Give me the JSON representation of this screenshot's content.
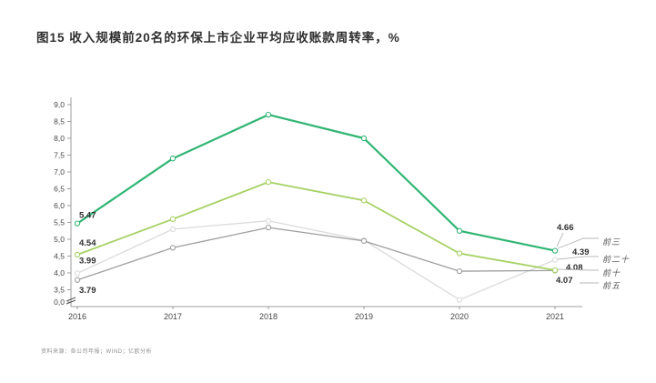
{
  "figure": {
    "title": "图15  收入规模前20名的环保上市企业平均应收账款周转率，%",
    "footnote": "资料来源：各公司年报；WIND；亿欧分析"
  },
  "chart_data": {
    "type": "line",
    "title": "收入规模前20名的环保上市企业平均应收账款周转率",
    "unit": "%",
    "x_categories": [
      "2016",
      "2017",
      "2018",
      "2019",
      "2020",
      "2021"
    ],
    "y_axis": {
      "tick_labels": [
        "9,0",
        "8,5",
        "8,0",
        "7,5",
        "7,0",
        "6,5",
        "6,0",
        "5,5",
        "5,0",
        "4,5",
        "4,0",
        "3,5",
        "0,0"
      ],
      "tick_values": [
        9.0,
        8.5,
        8.0,
        7.5,
        7.0,
        6.5,
        6.0,
        5.5,
        5.0,
        4.5,
        4.0,
        3.5,
        0.0
      ],
      "range_shown": [
        3.5,
        9.0
      ],
      "axis_break": true,
      "grid": false
    },
    "legend": {
      "position": "right",
      "entries": [
        "前三",
        "前二十",
        "前十",
        "前五"
      ]
    },
    "series": [
      {
        "name": "前二十",
        "color": "#dbdbdb",
        "values": [
          3.99,
          5.3,
          5.55,
          4.97,
          3.2,
          4.39
        ],
        "start_label": "3.99",
        "end_label": "4.39"
      },
      {
        "name": "前五",
        "color": "#9f9f9f",
        "values": [
          3.79,
          4.75,
          5.35,
          4.95,
          4.05,
          4.07
        ],
        "start_label": "3.79",
        "end_label": "4.07"
      },
      {
        "name": "前十",
        "color": "#a6d164",
        "values": [
          4.54,
          5.6,
          6.7,
          6.15,
          4.58,
          4.08
        ],
        "start_label": "4.54",
        "end_label": "4.08"
      },
      {
        "name": "前三",
        "color": "#30b573",
        "values": [
          5.47,
          7.4,
          8.7,
          8.0,
          5.25,
          4.66
        ],
        "start_label": "5.47",
        "end_label": "4.66"
      }
    ]
  }
}
